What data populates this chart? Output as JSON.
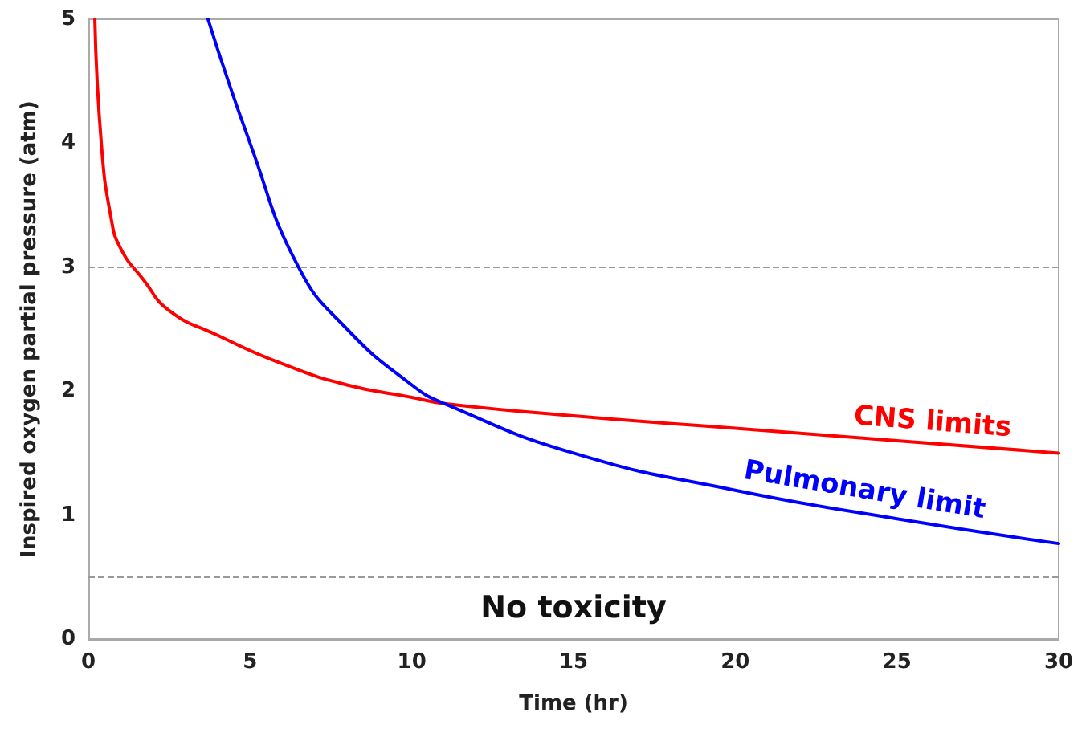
{
  "chart_data": {
    "type": "line",
    "xlabel": "Time (hr)",
    "ylabel": "Inspired oxygen partial pressure (atm)",
    "xlim": [
      0,
      30
    ],
    "xticks": [
      0,
      5,
      10,
      15,
      20,
      25,
      30
    ],
    "ylim": [
      0,
      5
    ],
    "yticks": [
      0,
      1,
      2,
      3,
      4,
      5
    ],
    "grid": false,
    "marker": "none",
    "line_style": "solid",
    "series": [
      {
        "color": "#ff0000",
        "x": [
          0.2,
          0.4,
          0.7,
          1,
          1.7,
          2.5,
          4,
          6,
          8,
          10,
          11,
          15,
          20,
          25,
          30
        ],
        "values": [
          5,
          4,
          3.4,
          3.15,
          2.9,
          2.65,
          2.45,
          2.22,
          2.05,
          1.95,
          1.9,
          1.8,
          1.7,
          1.6,
          1.5
        ]
      },
      {
        "color": "#0000ff",
        "x": [
          3.7,
          5,
          6.5,
          8,
          10,
          11,
          15,
          20,
          25,
          30
        ],
        "values": [
          5,
          4,
          3,
          2.5,
          2.05,
          1.9,
          1.5,
          1.2,
          0.97,
          0.77
        ]
      }
    ],
    "ref_lines": [
      {
        "axis": "y",
        "value": 3,
        "color": "#999999",
        "line_style": "dashed"
      },
      {
        "axis": "y",
        "value": 0.5,
        "color": "#999999",
        "line_style": "dashed"
      }
    ],
    "annotations": [
      "CNS limits",
      "Pulmonary limit",
      "No toxicity"
    ]
  }
}
